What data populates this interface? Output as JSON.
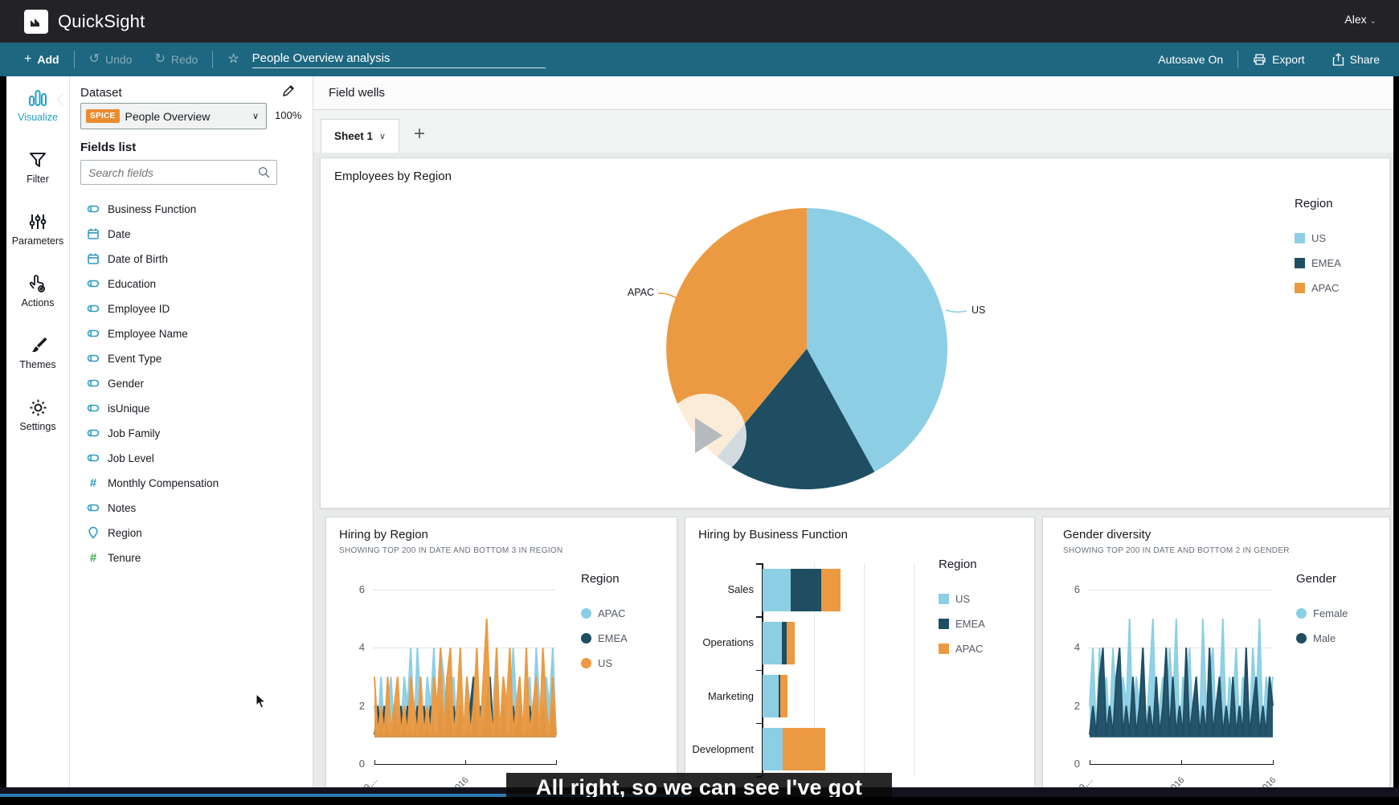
{
  "app": {
    "title": "QuickSight",
    "user": "Alex"
  },
  "toolbar": {
    "add": "Add",
    "undo": "Undo",
    "redo": "Redo",
    "analysis_title": "People Overview analysis",
    "autosave": "Autosave On",
    "export": "Export",
    "share": "Share"
  },
  "nav": {
    "items": [
      {
        "label": "Visualize",
        "icon": "bar-chart-icon",
        "active": true
      },
      {
        "label": "Filter",
        "icon": "funnel-icon",
        "active": false
      },
      {
        "label": "Parameters",
        "icon": "sliders-icon",
        "active": false
      },
      {
        "label": "Actions",
        "icon": "hand-gear-icon",
        "active": false
      },
      {
        "label": "Themes",
        "icon": "brush-icon",
        "active": false
      },
      {
        "label": "Settings",
        "icon": "gear-icon",
        "active": false
      }
    ]
  },
  "dataset_panel": {
    "heading": "Dataset",
    "spice_badge": "SPICE",
    "dataset_name": "People Overview",
    "import_pct": "100%",
    "fields_heading": "Fields list",
    "search_placeholder": "Search fields",
    "fields": [
      {
        "name": "Business Function",
        "type": "string"
      },
      {
        "name": "Date",
        "type": "date"
      },
      {
        "name": "Date of Birth",
        "type": "date"
      },
      {
        "name": "Education",
        "type": "string"
      },
      {
        "name": "Employee ID",
        "type": "string"
      },
      {
        "name": "Employee Name",
        "type": "string"
      },
      {
        "name": "Event Type",
        "type": "string"
      },
      {
        "name": "Gender",
        "type": "string"
      },
      {
        "name": "isUnique",
        "type": "string"
      },
      {
        "name": "Job Family",
        "type": "string"
      },
      {
        "name": "Job Level",
        "type": "string"
      },
      {
        "name": "Monthly Compensation",
        "type": "number"
      },
      {
        "name": "Notes",
        "type": "string"
      },
      {
        "name": "Region",
        "type": "geo"
      },
      {
        "name": "Tenure",
        "type": "number-green"
      }
    ]
  },
  "sheet": {
    "field_wells_label": "Field wells",
    "tab": "Sheet 1",
    "add_tab": "+"
  },
  "colors": {
    "light_blue": "#8CCFE5",
    "dark_blue": "#1F4E63",
    "orange": "#EC9A41",
    "accent": "#1FA3C6",
    "toolbar_blue": "#1E6781",
    "field_icon_blue": "#2E9BC0",
    "field_icon_green": "#3FA845"
  },
  "chart_data": [
    {
      "id": "employees_by_region",
      "type": "pie",
      "title": "Employees by Region",
      "legend_title": "Region",
      "legend_position": "right",
      "categories": [
        "US",
        "EMEA",
        "APAC"
      ],
      "values": [
        42,
        19,
        39
      ],
      "colors": [
        "#8CCFE5",
        "#1F4E63",
        "#EC9A41"
      ],
      "callouts": [
        "APAC",
        "US"
      ]
    },
    {
      "id": "hiring_by_region",
      "type": "line",
      "title": "Hiring by Region",
      "subtitle": "SHOWING TOP 200 IN DATE AND BOTTOM 3 IN REGION",
      "legend_title": "Region",
      "legend_position": "right",
      "ylim": [
        0,
        6
      ],
      "yticks": [
        0,
        2,
        4,
        6
      ],
      "grid": true,
      "xticklabels": [
        "9,...",
        "...016",
        "...016"
      ],
      "series": [
        {
          "name": "APAC",
          "color": "#8CCFE5",
          "values": [
            2,
            1,
            3,
            1,
            2,
            3,
            1,
            2,
            1,
            3,
            2,
            4,
            1,
            4,
            2,
            1,
            3,
            2,
            4,
            1,
            4,
            3,
            1,
            2,
            3,
            1,
            2,
            1,
            3,
            2,
            1,
            3,
            1,
            2,
            3,
            1,
            2,
            4,
            1,
            3,
            2,
            1,
            4,
            2,
            3,
            1,
            2,
            3,
            1,
            4,
            2,
            1,
            3,
            2,
            4,
            1
          ]
        },
        {
          "name": "EMEA",
          "color": "#1F4E63",
          "values": [
            1,
            2,
            1,
            2,
            1,
            1,
            2,
            1,
            2,
            1,
            2,
            1,
            1,
            2,
            1,
            2,
            1,
            2,
            1,
            1,
            2,
            1,
            3,
            1,
            2,
            1,
            2,
            1,
            1,
            2,
            3,
            1,
            2,
            1,
            2,
            3,
            1,
            2,
            1,
            2,
            1,
            1,
            2,
            1,
            2,
            1,
            1,
            2,
            1,
            2,
            1,
            2,
            1,
            1,
            2,
            1
          ]
        },
        {
          "name": "US",
          "color": "#EC9A41",
          "values": [
            3,
            1,
            2,
            1,
            3,
            1,
            2,
            3,
            1,
            2,
            1,
            3,
            2,
            1,
            3,
            1,
            2,
            1,
            3,
            2,
            4,
            1,
            3,
            4,
            1,
            2,
            4,
            1,
            3,
            1,
            2,
            4,
            1,
            3,
            5,
            2,
            1,
            4,
            1,
            3,
            2,
            4,
            1,
            2,
            3,
            1,
            4,
            1,
            2,
            3,
            1,
            4,
            2,
            1,
            3,
            1
          ]
        }
      ]
    },
    {
      "id": "hiring_by_business_function",
      "type": "bar",
      "orientation": "horizontal",
      "stacked": true,
      "title": "Hiring by Business Function",
      "legend_title": "Region",
      "legend_position": "right",
      "categories": [
        "Sales",
        "Operations",
        "Marketing",
        "Development"
      ],
      "xlim": [
        0,
        15
      ],
      "gridlines_every": 5,
      "series": [
        {
          "name": "US",
          "color": "#8CCFE5",
          "values": [
            2.8,
            1.9,
            1.6,
            2.0
          ]
        },
        {
          "name": "EMEA",
          "color": "#1F4E63",
          "values": [
            3.1,
            0.5,
            0.2,
            0.0
          ]
        },
        {
          "name": "APAC",
          "color": "#EC9A41",
          "values": [
            1.9,
            0.8,
            0.7,
            4.3
          ]
        }
      ]
    },
    {
      "id": "gender_diversity",
      "type": "line",
      "title": "Gender diversity",
      "subtitle": "SHOWING TOP 200 IN DATE AND BOTTOM 2 IN GENDER",
      "legend_title": "Gender",
      "legend_position": "right",
      "ylim": [
        0,
        6
      ],
      "yticks": [
        0,
        2,
        4,
        6
      ],
      "grid": true,
      "xticklabels": [
        "9,...",
        "...016",
        "...016"
      ],
      "series": [
        {
          "name": "Female",
          "color": "#8CCFE5",
          "values": [
            2,
            4,
            1,
            4,
            2,
            3,
            1,
            4,
            2,
            1,
            3,
            2,
            5,
            1,
            3,
            2,
            4,
            1,
            3,
            5,
            1,
            2,
            3,
            1,
            4,
            2,
            5,
            1,
            3,
            2,
            4,
            1,
            3,
            1,
            5,
            2,
            3,
            4,
            1,
            2,
            5,
            1,
            3,
            2,
            4,
            1,
            3,
            2,
            1,
            4,
            2,
            5,
            1,
            3,
            2,
            3
          ]
        },
        {
          "name": "Male",
          "color": "#1F4E63",
          "values": [
            1,
            2,
            1,
            3,
            4,
            1,
            2,
            1,
            3,
            4,
            1,
            2,
            1,
            3,
            1,
            2,
            4,
            1,
            2,
            1,
            3,
            1,
            2,
            4,
            1,
            3,
            1,
            2,
            1,
            4,
            1,
            2,
            3,
            1,
            2,
            1,
            4,
            1,
            2,
            3,
            1,
            2,
            1,
            3,
            1,
            2,
            1,
            4,
            1,
            2,
            3,
            1,
            2,
            1,
            3,
            2
          ]
        }
      ]
    }
  ],
  "caption": {
    "text": "All right, so we can see I've got"
  }
}
